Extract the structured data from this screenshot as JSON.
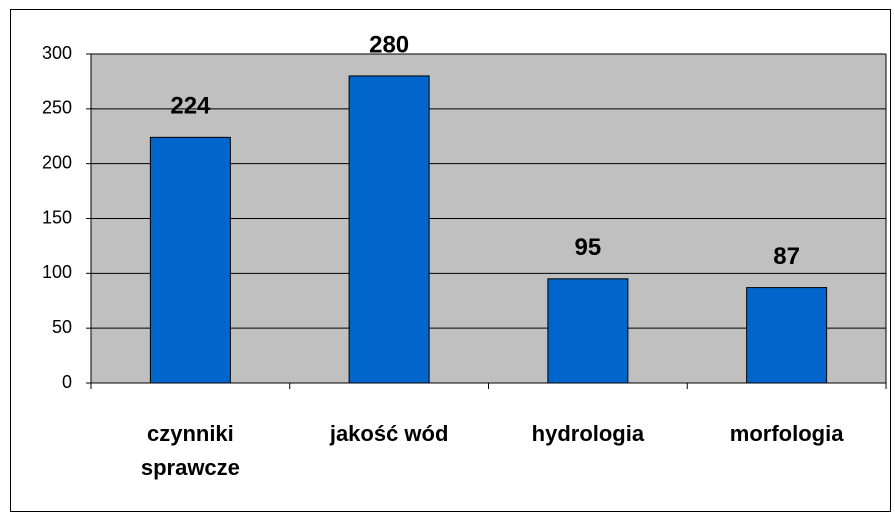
{
  "chart_data": {
    "type": "bar",
    "categories": [
      "czynniki sprawcze",
      "jakość wód",
      "hydrologia",
      "morfologia"
    ],
    "values": [
      224,
      280,
      95,
      87
    ],
    "color": "#0066cc",
    "plot_background": "#c0c0c0",
    "ylim": [
      0,
      300
    ],
    "yticks": [
      0,
      50,
      100,
      150,
      200,
      250,
      300
    ],
    "grid": true
  }
}
